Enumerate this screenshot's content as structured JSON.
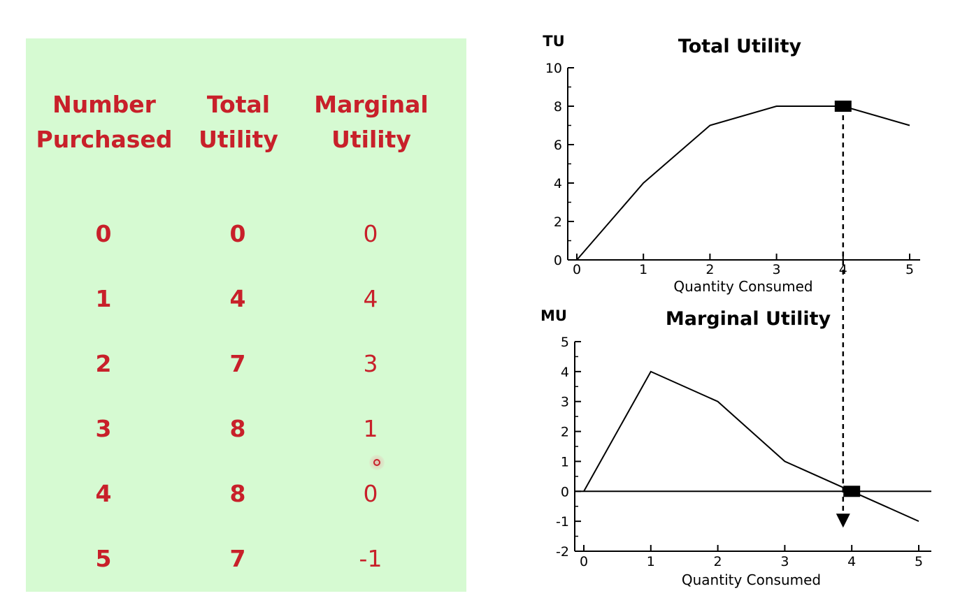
{
  "table": {
    "headers": [
      "Number Purchased",
      "Total Utility",
      "Marginal Utility"
    ],
    "header_lines": [
      [
        "Number",
        "Purchased"
      ],
      [
        "Total",
        "Utility"
      ],
      [
        "Marginal",
        "Utility"
      ]
    ],
    "rows": [
      [
        "0",
        "0",
        "0"
      ],
      [
        "1",
        "4",
        "4"
      ],
      [
        "2",
        "7",
        "3"
      ],
      [
        "3",
        "8",
        "1"
      ],
      [
        "4",
        "8",
        "0"
      ],
      [
        "5",
        "7",
        "-1"
      ]
    ],
    "text_color": "#c8202a",
    "background_color": "#d6fad2"
  },
  "chart_data": [
    {
      "type": "line",
      "title": "Total Utility",
      "ylabel": "TU",
      "xlabel": "Quantity Consumed",
      "x": [
        0,
        1,
        2,
        3,
        4,
        5
      ],
      "series": [
        {
          "values": [
            0,
            4,
            7,
            8,
            8,
            7
          ]
        }
      ],
      "xlim": [
        0,
        5
      ],
      "ylim": [
        0,
        10
      ],
      "xticks": [
        "0",
        "1",
        "2",
        "3",
        "4",
        "5"
      ],
      "yticks": [
        "0",
        "2",
        "4",
        "6",
        "8",
        "10"
      ],
      "highlight": {
        "x": 4,
        "y": 8
      },
      "grid": false
    },
    {
      "type": "line",
      "title": "Marginal Utility",
      "ylabel": "MU",
      "xlabel": "Quantity Consumed",
      "x": [
        0,
        1,
        2,
        3,
        4,
        5
      ],
      "series": [
        {
          "values": [
            0,
            4,
            3,
            1,
            0,
            -1
          ]
        }
      ],
      "xlim": [
        0,
        5
      ],
      "ylim": [
        -2,
        5
      ],
      "xticks": [
        "0",
        "1",
        "2",
        "3",
        "4",
        "5"
      ],
      "yticks": [
        "-2",
        "-1",
        "0",
        "1",
        "2",
        "3",
        "4",
        "5"
      ],
      "highlight": {
        "x": 4,
        "y": 0
      },
      "grid": false
    }
  ]
}
